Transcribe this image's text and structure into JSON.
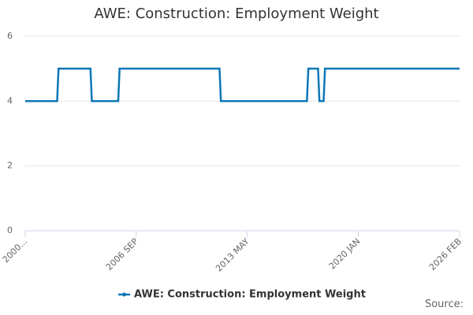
{
  "chart_data": {
    "type": "line",
    "title": "AWE: Construction: Employment Weight",
    "x": [
      "2000-01",
      "2001-12",
      "2002-01",
      "2003-12",
      "2004-01",
      "2005-08",
      "2005-09",
      "2011-09",
      "2011-10",
      "2016-12",
      "2017-01",
      "2017-08",
      "2017-09",
      "2017-12",
      "2018-01",
      "2026-02"
    ],
    "series": [
      {
        "name": "AWE: Construction: Employment Weight",
        "color": "#0d76b5",
        "values": [
          4,
          4,
          5,
          5,
          4,
          4,
          5,
          5,
          4,
          4,
          5,
          5,
          4,
          4,
          5,
          5
        ]
      }
    ],
    "xlim": [
      "2000-01",
      "2026-02"
    ],
    "xticks": [
      {
        "value": "2000-01",
        "label": "2000..."
      },
      {
        "value": "2006-09",
        "label": "2006 SEP"
      },
      {
        "value": "2013-05",
        "label": "2013 MAY"
      },
      {
        "value": "2020-01",
        "label": "2020 JAN"
      },
      {
        "value": "2026-02",
        "label": "2026 FEB"
      }
    ],
    "ylim": [
      0,
      6
    ],
    "yticks": [
      0,
      2,
      4,
      6
    ],
    "grid": true,
    "legend": "bottom",
    "source_label": "Source:"
  }
}
